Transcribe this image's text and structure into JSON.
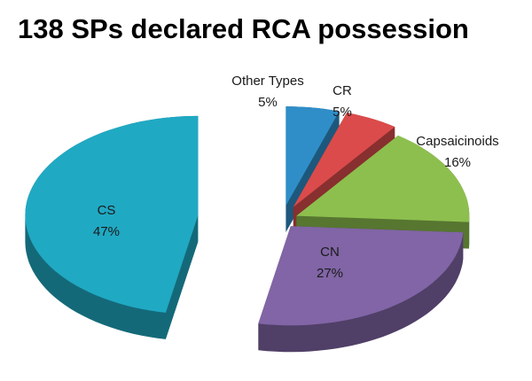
{
  "chart_data": {
    "type": "pie",
    "title": "138 SPs declared RCA possession",
    "categories": [
      "Other Types",
      "CR",
      "Capsaicinoids",
      "CN",
      "CS"
    ],
    "values": [
      5,
      5,
      16,
      27,
      47
    ],
    "value_labels": [
      "5%",
      "5%",
      "16%",
      "27%",
      "47%"
    ],
    "colors": [
      "#2f8ec8",
      "#db4b4b",
      "#8dbf4e",
      "#8165a6",
      "#20a9c3"
    ]
  }
}
